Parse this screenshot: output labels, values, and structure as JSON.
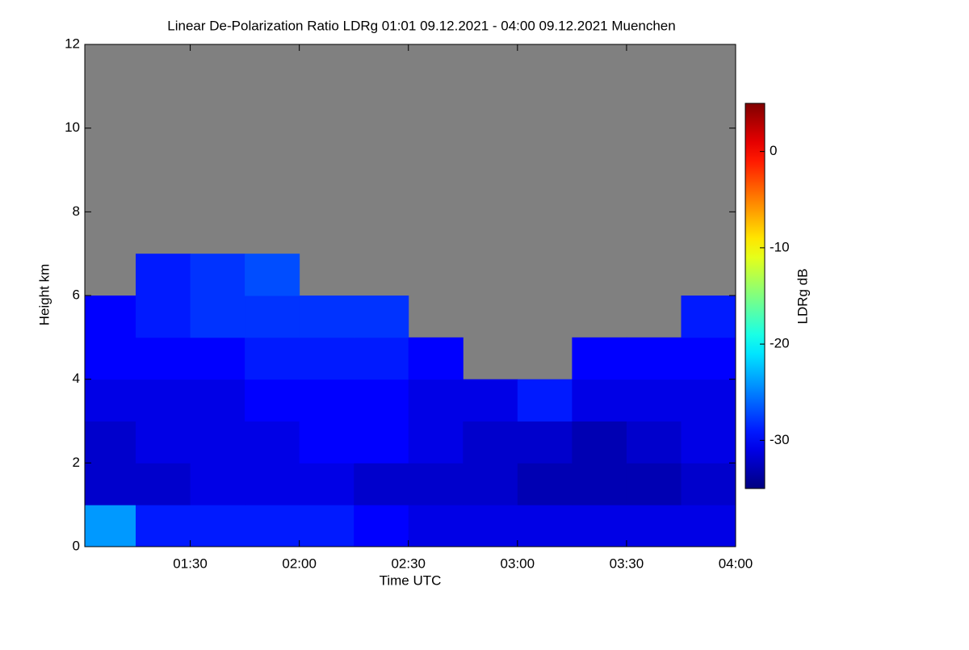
{
  "chart_data": {
    "type": "heatmap",
    "title": "Linear De-Polarization Ratio LDRg   01:01 09.12.2021 - 04:00 09.12.2021 Muenchen",
    "xlabel": "Time UTC",
    "ylabel": "Height km",
    "colorbar_label": "LDRg dB",
    "xlim": [
      "01:01",
      "04:00"
    ],
    "xticks": [
      "01:30",
      "02:00",
      "02:30",
      "03:00",
      "03:30",
      "04:00"
    ],
    "ylim": [
      0,
      12
    ],
    "yticks": [
      0,
      2,
      4,
      6,
      8,
      10,
      12
    ],
    "zlim": [
      -35,
      5
    ],
    "zticks": [
      0,
      -10,
      -20,
      -30
    ],
    "colormap": "jet",
    "missing_color": "#808080",
    "x_bins": [
      "01:01",
      "01:15",
      "01:30",
      "01:45",
      "02:00",
      "02:15",
      "02:30",
      "02:45",
      "03:00",
      "03:15",
      "03:30",
      "03:45",
      "04:00"
    ],
    "y_bins": [
      0,
      1,
      2,
      3,
      4,
      5,
      6,
      7,
      8,
      9,
      10,
      11,
      12
    ],
    "z": [
      [
        -24,
        -29,
        -29,
        -29,
        -29,
        -30,
        -31,
        -31,
        -31,
        -31,
        -31,
        -31
      ],
      [
        -32,
        -32,
        -31,
        -31,
        -31,
        -32,
        -32,
        -32,
        -33,
        -33,
        -33,
        -32
      ],
      [
        -32,
        -31,
        -31,
        -31,
        -30,
        -30,
        -31,
        -32,
        -32,
        -33,
        -32,
        -31
      ],
      [
        -31,
        -31,
        -31,
        -30,
        -30,
        -30,
        -31,
        -31,
        -29,
        -31,
        -31,
        -31
      ],
      [
        -30,
        -30,
        -30,
        -29,
        -29,
        -29,
        -30,
        null,
        null,
        -30,
        -30,
        -30
      ],
      [
        -30,
        -29,
        -28,
        -28,
        -28,
        -28,
        null,
        null,
        null,
        null,
        null,
        -29
      ],
      [
        null,
        -29,
        -28,
        -27,
        null,
        null,
        null,
        null,
        null,
        null,
        null,
        null
      ],
      [
        null,
        null,
        null,
        null,
        null,
        null,
        null,
        null,
        null,
        null,
        null,
        null
      ],
      [
        null,
        null,
        null,
        null,
        null,
        null,
        null,
        null,
        null,
        null,
        null,
        null
      ],
      [
        null,
        null,
        null,
        null,
        null,
        null,
        null,
        null,
        null,
        null,
        null,
        null
      ],
      [
        null,
        null,
        null,
        null,
        null,
        null,
        null,
        null,
        null,
        null,
        null,
        null
      ],
      [
        null,
        null,
        null,
        null,
        null,
        null,
        null,
        null,
        null,
        null,
        null,
        null
      ]
    ]
  }
}
